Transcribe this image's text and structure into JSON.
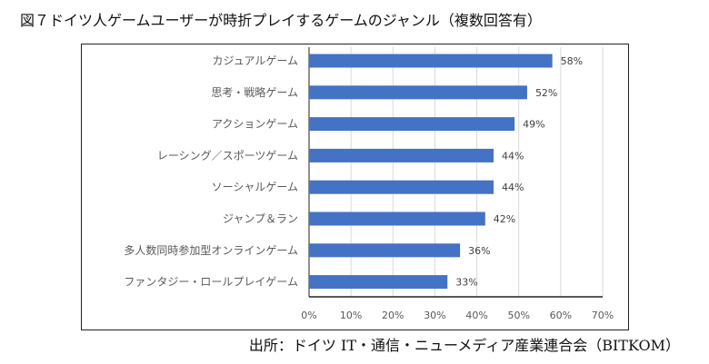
{
  "title": "図７ドイツ人ゲームユーザーが時折プレイするゲームのジャンル（複数回答有）",
  "source": "出所：ドイツ IT・通信・ニューメディア産業連合会（BITKOM）",
  "colors": {
    "bar": "#4472C4",
    "grid": "#D9D9D9",
    "axis": "#222222"
  },
  "chart_data": {
    "type": "bar",
    "orientation": "horizontal",
    "title": "図７ドイツ人ゲームユーザーが時折プレイするゲームのジャンル（複数回答有）",
    "categories": [
      "カジュアルゲーム",
      "思考・戦略ゲーム",
      "アクションゲーム",
      "レーシング／スポーツゲーム",
      "ソーシャルゲーム",
      "ジャンプ＆ラン",
      "多人数同時参加型オンラインゲーム",
      "ファンタジー・ロールプレイゲーム"
    ],
    "values": [
      58,
      52,
      49,
      44,
      44,
      42,
      36,
      33
    ],
    "value_labels": [
      "58%",
      "52%",
      "49%",
      "44%",
      "44%",
      "42%",
      "36%",
      "33%"
    ],
    "xlim": [
      0,
      70
    ],
    "xticks": [
      0,
      10,
      20,
      30,
      40,
      50,
      60,
      70
    ],
    "xtick_labels": [
      "0%",
      "10%",
      "20%",
      "30%",
      "40%",
      "50%",
      "60%",
      "70%"
    ],
    "grid": true,
    "xlabel": "",
    "ylabel": ""
  }
}
